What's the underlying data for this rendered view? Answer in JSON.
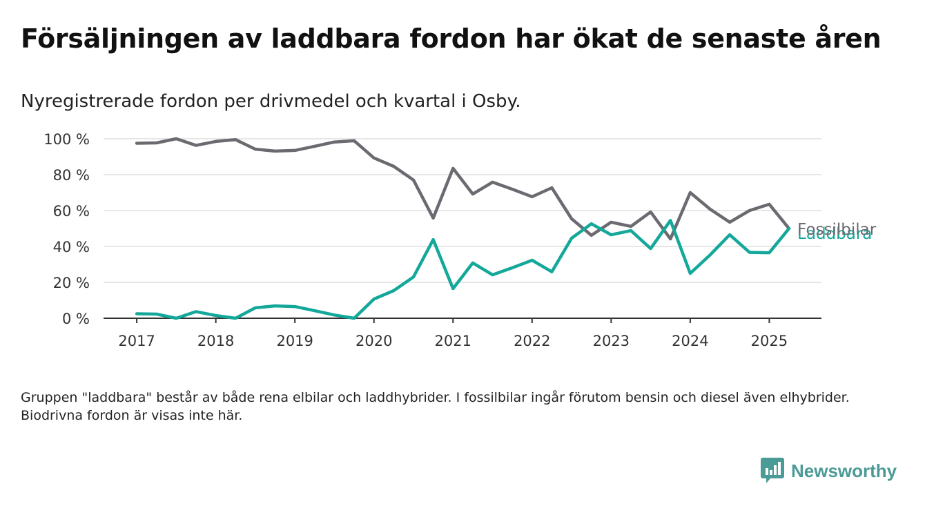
{
  "header": {
    "title": "Försäljningen av laddbara fordon har ökat de senaste åren",
    "subtitle": "Nyregistrerade fordon per drivmedel och kvartal i Osby."
  },
  "footnote": "Gruppen \"laddbara\" består av både rena elbilar och laddhybrider. I fossilbilar ingår förutom bensin och diesel även elhybrider. Biodrivna fordon är visas inte här.",
  "brand": {
    "name": "Newsworthy",
    "icon": "newsworthy-logo-icon",
    "color": "#4a9a96"
  },
  "chart_data": {
    "type": "line",
    "title": "Försäljningen av laddbara fordon har ökat de senaste åren",
    "subtitle": "Nyregistrerade fordon per drivmedel och kvartal i Osby.",
    "xlabel": "",
    "ylabel": "",
    "x_unit": "year",
    "xlim": [
      2016.58,
      2025.66
    ],
    "ylim": [
      0,
      100
    ],
    "x_ticks": [
      2017,
      2018,
      2019,
      2020,
      2021,
      2022,
      2023,
      2024,
      2025
    ],
    "x_tick_labels": [
      "2017",
      "2018",
      "2019",
      "2020",
      "2021",
      "2022",
      "2023",
      "2024",
      "2025"
    ],
    "y_ticks": [
      0,
      20,
      40,
      60,
      80,
      100
    ],
    "y_tick_labels": [
      "0 %",
      "20 %",
      "40 %",
      "60 %",
      "80 %",
      "100 %"
    ],
    "grid": true,
    "legend": "direct-labels-right",
    "x": [
      2017.0,
      2017.25,
      2017.5,
      2017.75,
      2018.0,
      2018.25,
      2018.5,
      2018.75,
      2019.0,
      2019.25,
      2019.5,
      2019.75,
      2020.0,
      2020.25,
      2020.5,
      2020.75,
      2021.0,
      2021.25,
      2021.5,
      2021.75,
      2022.0,
      2022.25,
      2022.5,
      2022.75,
      2023.0,
      2023.25,
      2023.5,
      2023.75,
      2024.0,
      2024.25,
      2024.5,
      2024.75,
      2025.0,
      2025.25
    ],
    "series": [
      {
        "name": "Fossilbilar",
        "color": "#6b6a71",
        "values": [
          97.5,
          97.7,
          100,
          96.3,
          98.5,
          99.5,
          94.2,
          93.1,
          93.5,
          95.8,
          98.2,
          98.9,
          89.3,
          84.6,
          77.0,
          55.8,
          83.5,
          69.2,
          75.8,
          71.9,
          67.7,
          72.7,
          55.4,
          46.2,
          53.5,
          51.2,
          59.2,
          44.2,
          70.0,
          60.8,
          53.5,
          60.0,
          63.5,
          50.0
        ]
      },
      {
        "name": "Laddbara",
        "color": "#14a89a",
        "values": [
          2.5,
          2.3,
          0,
          3.7,
          1.5,
          0,
          5.8,
          6.9,
          6.5,
          4.2,
          1.8,
          0,
          10.7,
          15.4,
          23.0,
          43.8,
          16.5,
          30.8,
          24.2,
          28.1,
          32.3,
          25.9,
          44.6,
          52.6,
          46.5,
          48.8,
          38.8,
          54.5,
          25.0,
          35.2,
          46.5,
          36.7,
          36.5,
          50.0
        ]
      }
    ]
  }
}
